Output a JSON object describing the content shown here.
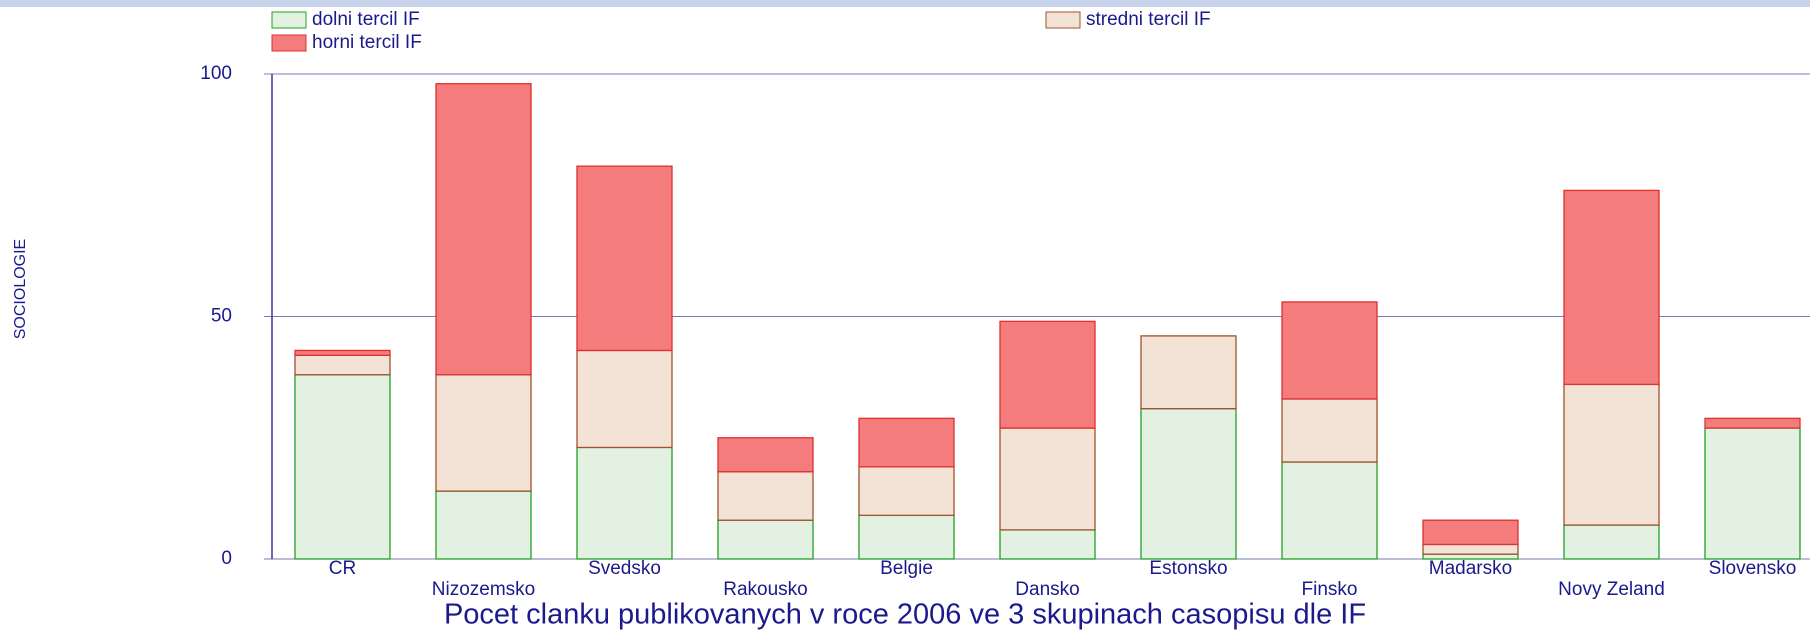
{
  "chart_data": {
    "type": "bar",
    "stacked": true,
    "title": "Pocet clanku publikovanych v roce 2006 ve 3 skupinach casopisu dle IF",
    "y_label": "SOCIOLOGIE",
    "categories": [
      "CR",
      "Nizozemsko",
      "Svedsko",
      "Rakousko",
      "Belgie",
      "Dansko",
      "Estonsko",
      "Finsko",
      "Madarsko",
      "Novy Zeland",
      "Slovensko"
    ],
    "series": [
      {
        "name": "dolni tercil IF",
        "color": "#e3f1e3",
        "stroke": "#22a022",
        "values": [
          38,
          14,
          23,
          8,
          9,
          6,
          31,
          20,
          1,
          7,
          27
        ]
      },
      {
        "name": "stredni tercil IF",
        "color": "#f2e3d6",
        "stroke": "#a0522d",
        "values": [
          4,
          24,
          20,
          10,
          10,
          21,
          15,
          13,
          2,
          29,
          0
        ]
      },
      {
        "name": "horni tercil IF",
        "color": "#f47c7c",
        "stroke": "#e03030",
        "values": [
          1,
          60,
          38,
          7,
          10,
          22,
          0,
          20,
          5,
          40,
          2
        ]
      }
    ],
    "ylim": [
      0,
      100
    ],
    "yticks": [
      0,
      50,
      100
    ],
    "grid": true
  }
}
